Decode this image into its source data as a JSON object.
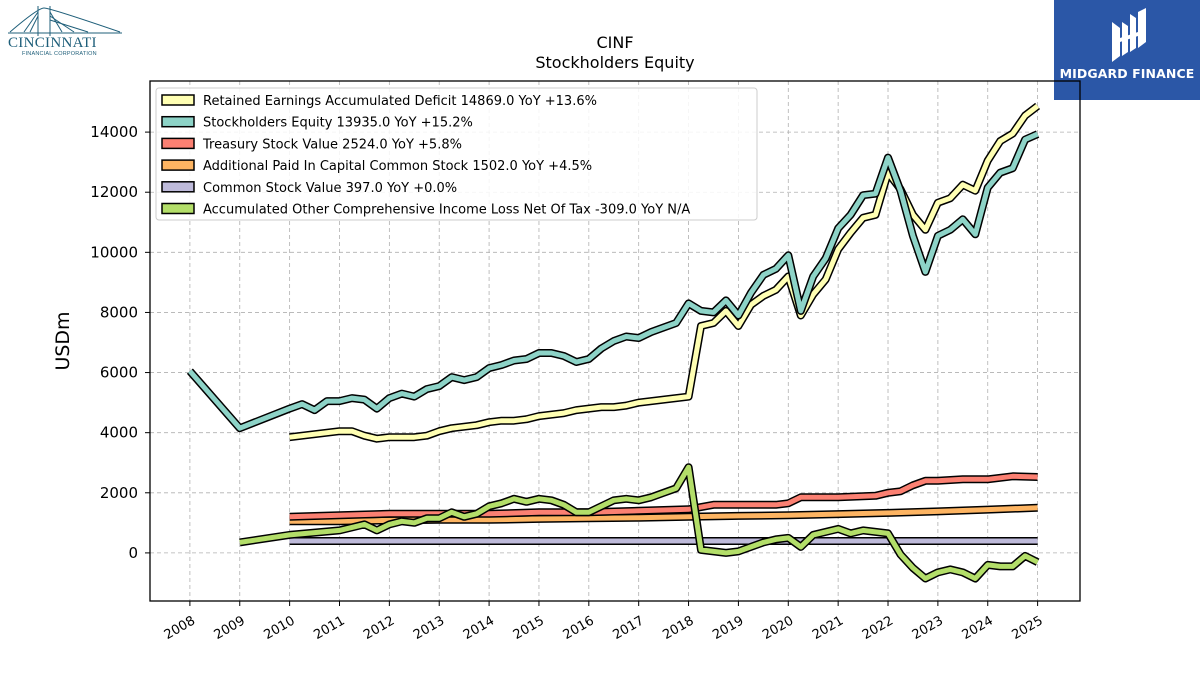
{
  "logos": {
    "left": {
      "name": "CINCINNATI",
      "sub": "FINANCIAL CORPORATION",
      "color": "#1f5f7a"
    },
    "right": {
      "name": "MIDGARD FINANCE",
      "bg": "#2b57a7"
    }
  },
  "chart_data": {
    "type": "line",
    "title": "CINF",
    "subtitle": "Stockholders  Equity",
    "ylabel": "USDm",
    "xlabel": "",
    "xlim": [
      2007.2,
      2025.85
    ],
    "ylim": [
      -1600,
      15700
    ],
    "yticks": [
      0,
      2000,
      4000,
      6000,
      8000,
      10000,
      12000,
      14000
    ],
    "xticks": [
      "2008",
      "2009",
      "2010",
      "2011",
      "2012",
      "2013",
      "2014",
      "2015",
      "2016",
      "2017",
      "2018",
      "2019",
      "2020",
      "2021",
      "2022",
      "2023",
      "2024",
      "2025"
    ],
    "grid": true,
    "legend_position": "top-left",
    "series": [
      {
        "name": "Retained Earnings Accumulated Deficit",
        "legend": "Retained Earnings Accumulated Deficit  14869.0 YoY +13.6%",
        "color": "#ffffb3",
        "points": [
          [
            2010,
            3850
          ],
          [
            2011,
            4050
          ],
          [
            2011.25,
            4050
          ],
          [
            2011.5,
            3900
          ],
          [
            2011.75,
            3800
          ],
          [
            2012,
            3850
          ],
          [
            2012.25,
            3850
          ],
          [
            2012.5,
            3850
          ],
          [
            2012.75,
            3900
          ],
          [
            2013,
            4050
          ],
          [
            2013.25,
            4150
          ],
          [
            2013.5,
            4200
          ],
          [
            2013.75,
            4250
          ],
          [
            2014,
            4350
          ],
          [
            2014.25,
            4400
          ],
          [
            2014.5,
            4400
          ],
          [
            2014.75,
            4450
          ],
          [
            2015,
            4550
          ],
          [
            2015.25,
            4600
          ],
          [
            2015.5,
            4650
          ],
          [
            2015.75,
            4750
          ],
          [
            2016,
            4800
          ],
          [
            2016.25,
            4850
          ],
          [
            2016.5,
            4850
          ],
          [
            2016.75,
            4900
          ],
          [
            2017,
            5000
          ],
          [
            2017.25,
            5050
          ],
          [
            2017.5,
            5100
          ],
          [
            2017.75,
            5150
          ],
          [
            2018,
            5200
          ],
          [
            2018.25,
            7550
          ],
          [
            2018.5,
            7650
          ],
          [
            2018.75,
            8050
          ],
          [
            2019,
            7550
          ],
          [
            2019.25,
            8250
          ],
          [
            2019.5,
            8550
          ],
          [
            2019.75,
            8750
          ],
          [
            2020,
            9200
          ],
          [
            2020.25,
            7900
          ],
          [
            2020.5,
            8600
          ],
          [
            2020.75,
            9100
          ],
          [
            2021,
            10100
          ],
          [
            2021.25,
            10650
          ],
          [
            2021.5,
            11150
          ],
          [
            2021.75,
            11250
          ],
          [
            2022,
            12650
          ],
          [
            2022.25,
            12100
          ],
          [
            2022.5,
            11250
          ],
          [
            2022.75,
            10750
          ],
          [
            2023,
            11650
          ],
          [
            2023.25,
            11800
          ],
          [
            2023.5,
            12250
          ],
          [
            2023.75,
            12050
          ],
          [
            2024,
            13050
          ],
          [
            2024.25,
            13700
          ],
          [
            2024.5,
            13950
          ],
          [
            2024.75,
            14550
          ],
          [
            2025,
            14869
          ]
        ]
      },
      {
        "name": "Stockholders Equity",
        "legend": "Stockholders Equity  13935.0 YoY +15.2%",
        "color": "#8dd3c7",
        "points": [
          [
            2008,
            6050
          ],
          [
            2009,
            4150
          ],
          [
            2010,
            4800
          ],
          [
            2010.25,
            4950
          ],
          [
            2010.5,
            4750
          ],
          [
            2010.75,
            5050
          ],
          [
            2011,
            5050
          ],
          [
            2011.25,
            5150
          ],
          [
            2011.5,
            5100
          ],
          [
            2011.75,
            4800
          ],
          [
            2012,
            5150
          ],
          [
            2012.25,
            5300
          ],
          [
            2012.5,
            5200
          ],
          [
            2012.75,
            5450
          ],
          [
            2013,
            5550
          ],
          [
            2013.25,
            5850
          ],
          [
            2013.5,
            5750
          ],
          [
            2013.75,
            5850
          ],
          [
            2014,
            6150
          ],
          [
            2014.25,
            6250
          ],
          [
            2014.5,
            6400
          ],
          [
            2014.75,
            6450
          ],
          [
            2015,
            6650
          ],
          [
            2015.25,
            6650
          ],
          [
            2015.5,
            6550
          ],
          [
            2015.75,
            6350
          ],
          [
            2016,
            6450
          ],
          [
            2016.25,
            6800
          ],
          [
            2016.5,
            7050
          ],
          [
            2016.75,
            7200
          ],
          [
            2017,
            7150
          ],
          [
            2017.25,
            7350
          ],
          [
            2017.5,
            7500
          ],
          [
            2017.75,
            7650
          ],
          [
            2018,
            8300
          ],
          [
            2018.25,
            8050
          ],
          [
            2018.5,
            8000
          ],
          [
            2018.75,
            8400
          ],
          [
            2019,
            7900
          ],
          [
            2019.25,
            8650
          ],
          [
            2019.5,
            9250
          ],
          [
            2019.75,
            9450
          ],
          [
            2020,
            9900
          ],
          [
            2020.25,
            8050
          ],
          [
            2020.5,
            9200
          ],
          [
            2020.75,
            9800
          ],
          [
            2021,
            10800
          ],
          [
            2021.25,
            11250
          ],
          [
            2021.5,
            11900
          ],
          [
            2021.75,
            11950
          ],
          [
            2022,
            13150
          ],
          [
            2022.25,
            12050
          ],
          [
            2022.5,
            10550
          ],
          [
            2022.75,
            9350
          ],
          [
            2023,
            10550
          ],
          [
            2023.25,
            10750
          ],
          [
            2023.5,
            11100
          ],
          [
            2023.75,
            10600
          ],
          [
            2024,
            12150
          ],
          [
            2024.25,
            12650
          ],
          [
            2024.5,
            12800
          ],
          [
            2024.75,
            13750
          ],
          [
            2025,
            13935
          ]
        ]
      },
      {
        "name": "Treasury Stock Value",
        "legend": "Treasury Stock Value  2524.0 YoY +5.8%",
        "color": "#fb8072",
        "points": [
          [
            2010,
            1200
          ],
          [
            2011,
            1250
          ],
          [
            2012,
            1300
          ],
          [
            2013,
            1300
          ],
          [
            2014,
            1300
          ],
          [
            2015,
            1350
          ],
          [
            2016,
            1350
          ],
          [
            2017,
            1400
          ],
          [
            2018,
            1450
          ],
          [
            2018.5,
            1600
          ],
          [
            2019,
            1600
          ],
          [
            2019.75,
            1600
          ],
          [
            2020,
            1650
          ],
          [
            2020.25,
            1850
          ],
          [
            2021,
            1850
          ],
          [
            2021.75,
            1900
          ],
          [
            2022,
            2000
          ],
          [
            2022.25,
            2050
          ],
          [
            2022.5,
            2250
          ],
          [
            2022.75,
            2400
          ],
          [
            2023,
            2400
          ],
          [
            2023.5,
            2450
          ],
          [
            2024,
            2450
          ],
          [
            2024.25,
            2500
          ],
          [
            2024.5,
            2550
          ],
          [
            2025,
            2524
          ]
        ]
      },
      {
        "name": "Additional Paid In Capital Common Stock",
        "legend": "Additional Paid In Capital Common Stock  1502.0 YoY +4.5%",
        "color": "#fdb462",
        "points": [
          [
            2010,
            1050
          ],
          [
            2011,
            1050
          ],
          [
            2012,
            1080
          ],
          [
            2013,
            1100
          ],
          [
            2014,
            1100
          ],
          [
            2015,
            1130
          ],
          [
            2016,
            1150
          ],
          [
            2017,
            1170
          ],
          [
            2018,
            1200
          ],
          [
            2019,
            1230
          ],
          [
            2020,
            1250
          ],
          [
            2021,
            1290
          ],
          [
            2022,
            1330
          ],
          [
            2023,
            1380
          ],
          [
            2024,
            1440
          ],
          [
            2025,
            1502
          ]
        ]
      },
      {
        "name": "Common Stock Value",
        "legend": "Common Stock Value  397.0 YoY +0.0%",
        "color": "#bebada",
        "points": [
          [
            2010,
            397
          ],
          [
            2025,
            397
          ]
        ]
      },
      {
        "name": "Accumulated Other Comprehensive Income Loss Net Of Tax",
        "legend": "Accumulated Other Comprehensive Income Loss Net Of Tax  -309.0 YoY N/A",
        "color": "#b3de69",
        "points": [
          [
            2009,
            350
          ],
          [
            2010,
            600
          ],
          [
            2011,
            750
          ],
          [
            2011.25,
            850
          ],
          [
            2011.5,
            950
          ],
          [
            2011.75,
            750
          ],
          [
            2012,
            950
          ],
          [
            2012.25,
            1050
          ],
          [
            2012.5,
            1000
          ],
          [
            2012.75,
            1150
          ],
          [
            2013,
            1150
          ],
          [
            2013.25,
            1350
          ],
          [
            2013.5,
            1200
          ],
          [
            2013.75,
            1300
          ],
          [
            2014,
            1550
          ],
          [
            2014.25,
            1650
          ],
          [
            2014.5,
            1800
          ],
          [
            2014.75,
            1700
          ],
          [
            2015,
            1800
          ],
          [
            2015.25,
            1750
          ],
          [
            2015.5,
            1600
          ],
          [
            2015.75,
            1350
          ],
          [
            2016,
            1350
          ],
          [
            2016.25,
            1550
          ],
          [
            2016.5,
            1750
          ],
          [
            2016.75,
            1800
          ],
          [
            2017,
            1750
          ],
          [
            2017.25,
            1850
          ],
          [
            2017.5,
            2000
          ],
          [
            2017.75,
            2150
          ],
          [
            2018,
            2850
          ],
          [
            2018.25,
            100
          ],
          [
            2018.5,
            50
          ],
          [
            2018.75,
            0
          ],
          [
            2019,
            50
          ],
          [
            2019.25,
            200
          ],
          [
            2019.5,
            350
          ],
          [
            2019.75,
            450
          ],
          [
            2020,
            500
          ],
          [
            2020.25,
            200
          ],
          [
            2020.5,
            600
          ],
          [
            2020.75,
            700
          ],
          [
            2021,
            800
          ],
          [
            2021.25,
            650
          ],
          [
            2021.5,
            750
          ],
          [
            2021.75,
            700
          ],
          [
            2022,
            650
          ],
          [
            2022.25,
            -50
          ],
          [
            2022.5,
            -500
          ],
          [
            2022.75,
            -850
          ],
          [
            2023,
            -650
          ],
          [
            2023.25,
            -550
          ],
          [
            2023.5,
            -650
          ],
          [
            2023.75,
            -850
          ],
          [
            2024,
            -400
          ],
          [
            2024.25,
            -450
          ],
          [
            2024.5,
            -450
          ],
          [
            2024.75,
            -100
          ],
          [
            2025,
            -309
          ]
        ]
      }
    ]
  }
}
